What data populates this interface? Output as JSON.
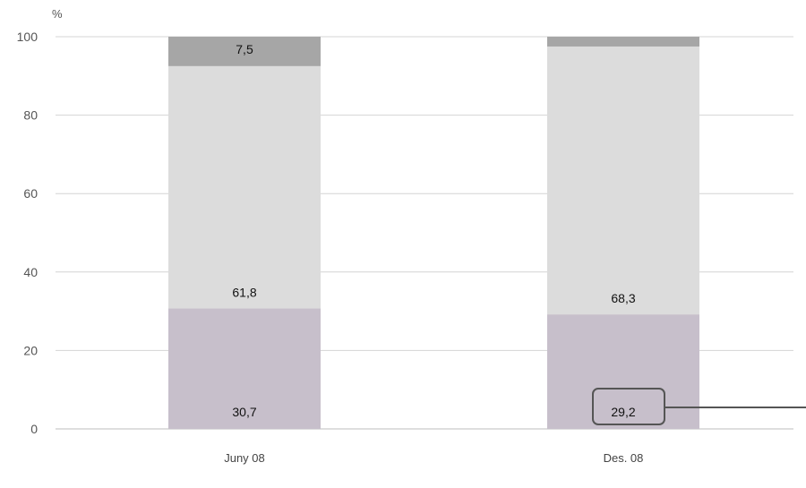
{
  "chart_data": {
    "type": "bar",
    "stacked": true,
    "title": "",
    "xlabel": "",
    "ylabel": "%",
    "ylim": [
      0,
      100
    ],
    "yticks": [
      "0",
      "20",
      "40",
      "60",
      "80",
      "100"
    ],
    "grid": true,
    "categories": [
      "Juny 08",
      "Des. 08"
    ],
    "series": [
      {
        "color": "#c7bfcb",
        "values": [
          30.7,
          29.2
        ],
        "labels": [
          "30,7",
          "29,2"
        ]
      },
      {
        "color": "#dcdcdc",
        "values": [
          61.8,
          68.3
        ],
        "labels": [
          "61,8",
          "68,3"
        ]
      },
      {
        "color": "#a6a6a6",
        "values": [
          7.5,
          2.5
        ],
        "labels": [
          "7,5",
          ""
        ]
      }
    ],
    "annotation": {
      "category_index": 1,
      "series_index": 0,
      "label": "29,2"
    }
  }
}
